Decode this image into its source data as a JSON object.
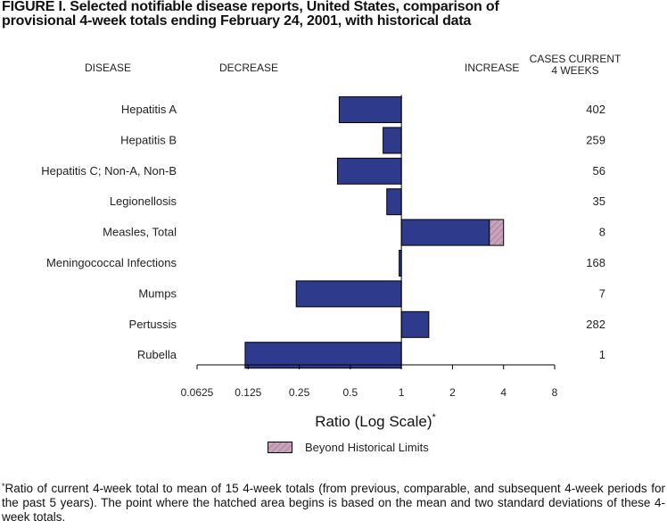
{
  "figure": {
    "title_line1": "FIGURE I. Selected notifiable disease reports, United States, comparison of",
    "title_line2": "provisional 4-week totals ending February 24, 2001, with historical data"
  },
  "headers": {
    "disease": "DISEASE",
    "decrease": "DECREASE",
    "increase": "INCREASE",
    "cases_line1": "CASES CURRENT",
    "cases_line2": "4 WEEKS"
  },
  "legend": {
    "label": "Beyond Historical Limits",
    "fill_color": "#c8a2b8"
  },
  "footnote": {
    "marker": "*",
    "text": "Ratio of current 4-week total to mean of 15 4-week totals (from previous, comparable, and subsequent 4-week periods for the past 5 years). The point where the hatched area begins is based on the mean and two standard deviations of these 4-week totals."
  },
  "chart_data": {
    "type": "bar",
    "orientation": "horizontal",
    "xscale": "log2",
    "xlabel": "Ratio (Log Scale)",
    "xlabel_marker": "*",
    "xlim": [
      0.0625,
      8
    ],
    "xticks": [
      "0.0625",
      "0.125",
      "0.25",
      "0.5",
      "1",
      "2",
      "4",
      "8"
    ],
    "xtick_values": [
      0.0625,
      0.125,
      0.25,
      0.5,
      1,
      2,
      4,
      8
    ],
    "baseline": 1,
    "bar_color": "#2e3a8c",
    "categories": [
      "Hepatitis A",
      "Hepatitis B",
      "Hepatitis C; Non-A, Non-B",
      "Legionellosis",
      "Measles, Total",
      "Meningococcal Infections",
      "Mumps",
      "Pertussis",
      "Rubella"
    ],
    "values": [
      0.43,
      0.78,
      0.42,
      0.82,
      4.0,
      0.97,
      0.24,
      1.45,
      0.12
    ],
    "beyond_limits_start": [
      null,
      null,
      null,
      null,
      3.3,
      null,
      null,
      null,
      null
    ],
    "cases_current_4_weeks": [
      "402",
      "259",
      "56",
      "35",
      "8",
      "168",
      "7",
      "282",
      "1"
    ]
  }
}
